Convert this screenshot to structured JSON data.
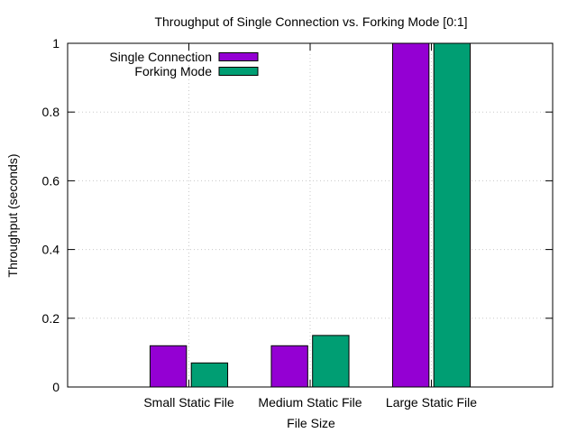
{
  "chart_data": {
    "type": "bar",
    "title": "Throughput of Single Connection vs. Forking Mode [0:1]",
    "xlabel": "File Size",
    "ylabel": "Throughput (seconds)",
    "categories": [
      "Small Static File",
      "Medium Static File",
      "Large Static File"
    ],
    "series": [
      {
        "name": "Single Connection",
        "color": "#9400d3",
        "values": [
          0.12,
          0.12,
          1.0
        ]
      },
      {
        "name": "Forking Mode",
        "color": "#009e73",
        "values": [
          0.07,
          0.15,
          1.0
        ]
      }
    ],
    "ylim": [
      0,
      1
    ],
    "yticks": [
      0,
      0.2,
      0.4,
      0.6,
      0.8,
      1
    ],
    "ytick_labels": [
      "0",
      "0.2",
      "0.4",
      "0.6",
      "0.8",
      "1"
    ],
    "grid": true,
    "legend_position": "top-left"
  }
}
